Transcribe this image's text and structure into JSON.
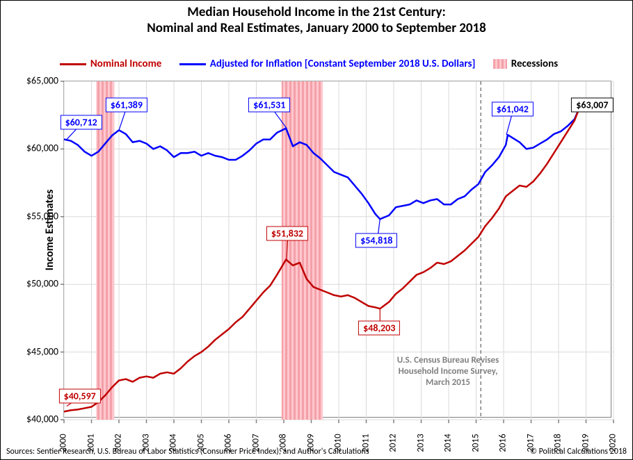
{
  "title_line1": "Median Household Income in the 21st Century:",
  "title_line2": "Nominal and Real Estimates, January 2000 to September 2018",
  "legend": {
    "nominal": "Nominal Income",
    "real": "Adjusted for Inflation [Constant September 2018 U.S. Dollars]",
    "recessions": "Recessions"
  },
  "ylabel": "Income Estimates",
  "source": "Sources: Sentier Research, U.S. Bureau of Labor Statistics (Consumer Price Index), and Author's Calculations",
  "copyright": "© Political Calculations 2018",
  "note_text": "U.S. Census Bureau Revises\nHousehold Income Survey,\nMarch 2015",
  "colors": {
    "nominal": "#c00000",
    "real": "#0000ff",
    "recession": "#ffc7ce",
    "recession_stripe": "#f4a0a8",
    "grid": "#d9d9d9",
    "axis": "#808080",
    "vline": "#7f7f7f",
    "text": "#000000",
    "note": "#808080"
  },
  "yaxis": {
    "min": 40000,
    "max": 65000,
    "step": 5000,
    "ticks": [
      "$40,000",
      "$45,000",
      "$50,000",
      "$55,000",
      "$60,000",
      "$65,000"
    ]
  },
  "xaxis": {
    "min": 2000,
    "max": 2020,
    "step": 1,
    "ticks": [
      "2000",
      "2001",
      "2002",
      "2003",
      "2004",
      "2005",
      "2006",
      "2007",
      "2008",
      "2009",
      "2010",
      "2011",
      "2012",
      "2013",
      "2014",
      "2015",
      "2016",
      "2017",
      "2018",
      "2019",
      "2020"
    ]
  },
  "recessions": [
    {
      "start": 2001.17,
      "end": 2001.83
    },
    {
      "start": 2007.92,
      "end": 2009.42
    }
  ],
  "vline_year": 2015.17,
  "note_pos_year": 2014.0,
  "note_pos_income": 44700,
  "line_width": 2.5,
  "callouts": [
    {
      "year": 2000.1,
      "y": 41000,
      "labelY": 41700,
      "labelX": 2000.6,
      "text": "$40,597",
      "color": "#c00000"
    },
    {
      "year": 2008.1,
      "y": 51832,
      "labelY": 53700,
      "labelX": 2008.15,
      "text": "$51,832",
      "color": "#c00000"
    },
    {
      "year": 2011.5,
      "y": 48203,
      "labelY": 46700,
      "labelX": 2011.5,
      "text": "$48,203",
      "color": "#c00000"
    },
    {
      "year": 2000.1,
      "y": 60712,
      "labelY": 61900,
      "labelX": 2000.65,
      "text": "$60,712",
      "color": "#0000ff"
    },
    {
      "year": 2002.0,
      "y": 61389,
      "labelY": 63200,
      "labelX": 2002.3,
      "text": "$61,389",
      "color": "#0000ff"
    },
    {
      "year": 2008.1,
      "y": 61531,
      "labelY": 63200,
      "labelX": 2007.5,
      "text": "$61,531",
      "color": "#0000ff"
    },
    {
      "year": 2011.5,
      "y": 54818,
      "labelY": 53200,
      "labelX": 2011.4,
      "text": "$54,818",
      "color": "#0000ff"
    },
    {
      "year": 2016.1,
      "y": 61042,
      "labelY": 62900,
      "labelX": 2016.35,
      "text": "$61,042",
      "color": "#0000ff"
    },
    {
      "year": 2018.75,
      "y": 63007,
      "labelY": 63200,
      "labelX": 2019.25,
      "text": "$63,007",
      "color": "#000000"
    }
  ],
  "series": {
    "nominal": [
      [
        2000.0,
        40597
      ],
      [
        2000.25,
        40700
      ],
      [
        2000.5,
        40750
      ],
      [
        2000.75,
        40850
      ],
      [
        2001.0,
        40950
      ],
      [
        2001.25,
        41300
      ],
      [
        2001.5,
        41800
      ],
      [
        2001.75,
        42400
      ],
      [
        2002.0,
        42900
      ],
      [
        2002.25,
        43000
      ],
      [
        2002.5,
        42800
      ],
      [
        2002.75,
        43100
      ],
      [
        2003.0,
        43200
      ],
      [
        2003.25,
        43100
      ],
      [
        2003.5,
        43400
      ],
      [
        2003.75,
        43500
      ],
      [
        2004.0,
        43400
      ],
      [
        2004.25,
        43800
      ],
      [
        2004.5,
        44300
      ],
      [
        2004.75,
        44700
      ],
      [
        2005.0,
        45000
      ],
      [
        2005.25,
        45400
      ],
      [
        2005.5,
        45900
      ],
      [
        2005.75,
        46300
      ],
      [
        2006.0,
        46700
      ],
      [
        2006.25,
        47200
      ],
      [
        2006.5,
        47600
      ],
      [
        2006.75,
        48200
      ],
      [
        2007.0,
        48800
      ],
      [
        2007.25,
        49400
      ],
      [
        2007.5,
        49900
      ],
      [
        2007.75,
        50700
      ],
      [
        2008.08,
        51832
      ],
      [
        2008.33,
        51400
      ],
      [
        2008.58,
        51600
      ],
      [
        2008.83,
        50400
      ],
      [
        2009.08,
        49800
      ],
      [
        2009.33,
        49600
      ],
      [
        2009.58,
        49400
      ],
      [
        2009.83,
        49200
      ],
      [
        2010.08,
        49100
      ],
      [
        2010.33,
        49200
      ],
      [
        2010.58,
        49000
      ],
      [
        2010.83,
        48700
      ],
      [
        2011.08,
        48400
      ],
      [
        2011.33,
        48300
      ],
      [
        2011.5,
        48203
      ],
      [
        2011.83,
        48700
      ],
      [
        2012.08,
        49300
      ],
      [
        2012.33,
        49700
      ],
      [
        2012.58,
        50200
      ],
      [
        2012.83,
        50700
      ],
      [
        2013.08,
        50900
      ],
      [
        2013.33,
        51200
      ],
      [
        2013.58,
        51600
      ],
      [
        2013.83,
        51500
      ],
      [
        2014.08,
        51700
      ],
      [
        2014.33,
        52100
      ],
      [
        2014.58,
        52500
      ],
      [
        2014.83,
        53000
      ],
      [
        2015.08,
        53500
      ],
      [
        2015.33,
        54300
      ],
      [
        2015.58,
        54900
      ],
      [
        2015.83,
        55600
      ],
      [
        2016.08,
        56500
      ],
      [
        2016.33,
        56900
      ],
      [
        2016.58,
        57300
      ],
      [
        2016.83,
        57200
      ],
      [
        2017.08,
        57600
      ],
      [
        2017.33,
        58200
      ],
      [
        2017.58,
        58900
      ],
      [
        2017.83,
        59700
      ],
      [
        2018.08,
        60500
      ],
      [
        2018.33,
        61300
      ],
      [
        2018.58,
        62100
      ],
      [
        2018.75,
        63007
      ]
    ],
    "real": [
      [
        2000.0,
        60712
      ],
      [
        2000.25,
        60600
      ],
      [
        2000.5,
        60300
      ],
      [
        2000.75,
        59800
      ],
      [
        2001.0,
        59500
      ],
      [
        2001.25,
        59800
      ],
      [
        2001.5,
        60400
      ],
      [
        2001.75,
        61000
      ],
      [
        2002.0,
        61389
      ],
      [
        2002.25,
        61100
      ],
      [
        2002.5,
        60500
      ],
      [
        2002.75,
        60600
      ],
      [
        2003.0,
        60400
      ],
      [
        2003.25,
        60000
      ],
      [
        2003.5,
        60200
      ],
      [
        2003.75,
        59900
      ],
      [
        2004.0,
        59400
      ],
      [
        2004.25,
        59700
      ],
      [
        2004.5,
        59700
      ],
      [
        2004.75,
        59800
      ],
      [
        2005.0,
        59500
      ],
      [
        2005.25,
        59700
      ],
      [
        2005.5,
        59500
      ],
      [
        2005.75,
        59400
      ],
      [
        2006.0,
        59200
      ],
      [
        2006.25,
        59200
      ],
      [
        2006.5,
        59500
      ],
      [
        2006.75,
        59900
      ],
      [
        2007.0,
        60400
      ],
      [
        2007.25,
        60700
      ],
      [
        2007.5,
        60700
      ],
      [
        2007.75,
        61200
      ],
      [
        2008.08,
        61531
      ],
      [
        2008.33,
        60200
      ],
      [
        2008.58,
        60500
      ],
      [
        2008.83,
        60300
      ],
      [
        2009.08,
        59700
      ],
      [
        2009.33,
        59300
      ],
      [
        2009.58,
        58800
      ],
      [
        2009.83,
        58300
      ],
      [
        2010.08,
        58100
      ],
      [
        2010.33,
        57900
      ],
      [
        2010.58,
        57300
      ],
      [
        2010.83,
        56700
      ],
      [
        2011.08,
        56000
      ],
      [
        2011.33,
        55200
      ],
      [
        2011.5,
        54818
      ],
      [
        2011.83,
        55100
      ],
      [
        2012.08,
        55700
      ],
      [
        2012.33,
        55800
      ],
      [
        2012.58,
        55900
      ],
      [
        2012.83,
        56200
      ],
      [
        2013.08,
        56000
      ],
      [
        2013.33,
        56200
      ],
      [
        2013.58,
        56300
      ],
      [
        2013.83,
        55900
      ],
      [
        2014.08,
        55900
      ],
      [
        2014.33,
        56300
      ],
      [
        2014.58,
        56500
      ],
      [
        2014.83,
        57000
      ],
      [
        2015.08,
        57400
      ],
      [
        2015.33,
        58300
      ],
      [
        2015.58,
        58800
      ],
      [
        2015.83,
        59400
      ],
      [
        2016.08,
        60300
      ],
      [
        2016.15,
        61042
      ],
      [
        2016.58,
        60500
      ],
      [
        2016.83,
        60000
      ],
      [
        2017.08,
        60100
      ],
      [
        2017.33,
        60400
      ],
      [
        2017.58,
        60700
      ],
      [
        2017.83,
        61100
      ],
      [
        2018.08,
        61300
      ],
      [
        2018.33,
        61700
      ],
      [
        2018.58,
        62200
      ],
      [
        2018.75,
        63007
      ]
    ]
  }
}
